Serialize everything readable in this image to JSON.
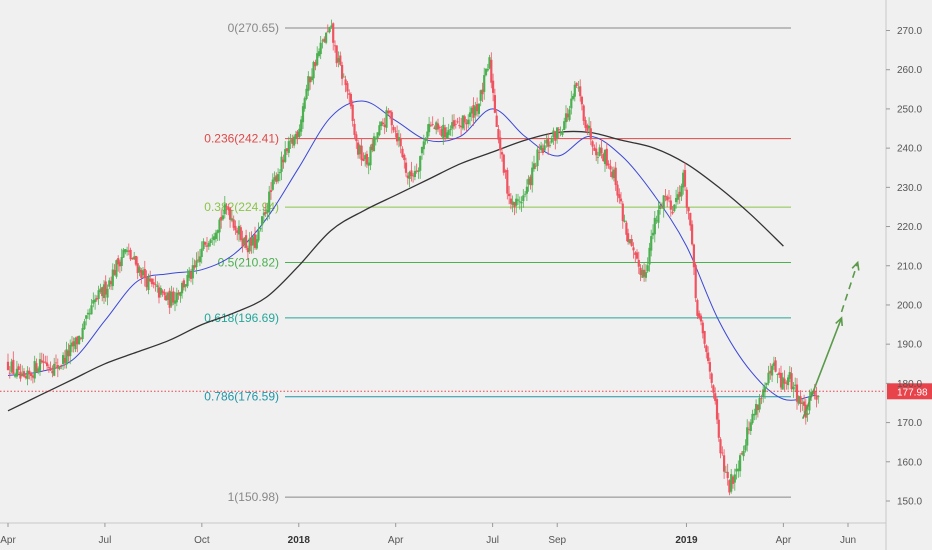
{
  "chart_data": {
    "type": "candlestick",
    "y_axis": {
      "min": 148,
      "max": 276,
      "ticks": [
        150,
        160,
        170,
        180,
        190,
        200,
        210,
        220,
        230,
        240,
        250,
        260,
        270
      ]
    },
    "x_axis": {
      "ticks": [
        {
          "label": "Apr",
          "bold": false,
          "month": 0
        },
        {
          "label": "Jul",
          "bold": false,
          "month": 3
        },
        {
          "label": "Oct",
          "bold": false,
          "month": 6
        },
        {
          "label": "2018",
          "bold": true,
          "month": 9
        },
        {
          "label": "Apr",
          "bold": false,
          "month": 12
        },
        {
          "label": "Jul",
          "bold": false,
          "month": 15
        },
        {
          "label": "Sep",
          "bold": false,
          "month": 17
        },
        {
          "label": "2019",
          "bold": true,
          "month": 21
        },
        {
          "label": "Apr",
          "bold": false,
          "month": 24
        },
        {
          "label": "Jun",
          "bold": false,
          "month": 26
        }
      ]
    },
    "last_price": {
      "value": 177.98,
      "label": "177.98",
      "color": "#e8424a"
    },
    "fib_levels": [
      {
        "ratio": "0",
        "price": 270.65,
        "label": "0(270.65)",
        "color": "#888888"
      },
      {
        "ratio": "0.236",
        "price": 242.41,
        "label": "0.236(242.41)",
        "color": "#e04848"
      },
      {
        "ratio": "0.382",
        "price": 224.94,
        "label": "0.382(224.94)",
        "color": "#8bc34a"
      },
      {
        "ratio": "0.5",
        "price": 210.82,
        "label": "0.5(210.82)",
        "color": "#4caf50"
      },
      {
        "ratio": "0.618",
        "price": 196.69,
        "label": "0.618(196.69)",
        "color": "#26a69a"
      },
      {
        "ratio": "0.786",
        "price": 176.59,
        "label": "0.786(176.59)",
        "color": "#2196a8"
      },
      {
        "ratio": "1",
        "price": 150.98,
        "label": "1(150.98)",
        "color": "#888888"
      }
    ],
    "price_path": [
      [
        0,
        185
      ],
      [
        0.5,
        180
      ],
      [
        1,
        186
      ],
      [
        1.5,
        184
      ],
      [
        2,
        189
      ],
      [
        2.3,
        193
      ],
      [
        2.7,
        201
      ],
      [
        3,
        204
      ],
      [
        3.3,
        209
      ],
      [
        3.6,
        214
      ],
      [
        4,
        210
      ],
      [
        4.4,
        205
      ],
      [
        4.7,
        203
      ],
      [
        5,
        201
      ],
      [
        5.4,
        205
      ],
      [
        5.8,
        209
      ],
      [
        6.1,
        216
      ],
      [
        6.5,
        221
      ],
      [
        6.8,
        225
      ],
      [
        7.1,
        219
      ],
      [
        7.4,
        215
      ],
      [
        7.7,
        216
      ],
      [
        8.0,
        225
      ],
      [
        8.3,
        233
      ],
      [
        8.7,
        240
      ],
      [
        9.0,
        245
      ],
      [
        9.2,
        254
      ],
      [
        9.5,
        262
      ],
      [
        9.8,
        268
      ],
      [
        10.0,
        270
      ],
      [
        10.2,
        262
      ],
      [
        10.5,
        255
      ],
      [
        10.8,
        240
      ],
      [
        11.1,
        236
      ],
      [
        11.4,
        243
      ],
      [
        11.8,
        249
      ],
      [
        12.1,
        242
      ],
      [
        12.4,
        232
      ],
      [
        12.7,
        236
      ],
      [
        13.0,
        246
      ],
      [
        13.4,
        244
      ],
      [
        13.8,
        245
      ],
      [
        14.2,
        247
      ],
      [
        14.6,
        252
      ],
      [
        14.9,
        262
      ],
      [
        15.1,
        248
      ],
      [
        15.3,
        236
      ],
      [
        15.6,
        225
      ],
      [
        16.0,
        228
      ],
      [
        16.4,
        238
      ],
      [
        16.8,
        242
      ],
      [
        17.1,
        245
      ],
      [
        17.4,
        250
      ],
      [
        17.6,
        256
      ],
      [
        17.9,
        246
      ],
      [
        18.2,
        240
      ],
      [
        18.5,
        238
      ],
      [
        18.8,
        232
      ],
      [
        19.1,
        220
      ],
      [
        19.4,
        211
      ],
      [
        19.7,
        208
      ],
      [
        20.0,
        220
      ],
      [
        20.3,
        228
      ],
      [
        20.6,
        225
      ],
      [
        20.9,
        232
      ],
      [
        21.1,
        222
      ],
      [
        21.3,
        200
      ],
      [
        21.6,
        188
      ],
      [
        21.8,
        181
      ],
      [
        22.0,
        165
      ],
      [
        22.3,
        153
      ],
      [
        22.6,
        160
      ],
      [
        22.9,
        168
      ],
      [
        23.2,
        175
      ],
      [
        23.5,
        180
      ],
      [
        23.7,
        184
      ],
      [
        23.9,
        180
      ],
      [
        24.2,
        181
      ],
      [
        24.5,
        176
      ],
      [
        24.7,
        172
      ],
      [
        24.9,
        177
      ],
      [
        25.1,
        178
      ]
    ],
    "ma_fast": [
      [
        0,
        182
      ],
      [
        1,
        183
      ],
      [
        2,
        186
      ],
      [
        3,
        196
      ],
      [
        4,
        206
      ],
      [
        5,
        208
      ],
      [
        6,
        209
      ],
      [
        7,
        213
      ],
      [
        8,
        222
      ],
      [
        9,
        235
      ],
      [
        10,
        248
      ],
      [
        11,
        252
      ],
      [
        12,
        247
      ],
      [
        13,
        242
      ],
      [
        14,
        243
      ],
      [
        15,
        250
      ],
      [
        16,
        243
      ],
      [
        17,
        238
      ],
      [
        18,
        243
      ],
      [
        19,
        238
      ],
      [
        20,
        228
      ],
      [
        21,
        215
      ],
      [
        22,
        196
      ],
      [
        23,
        183
      ],
      [
        24,
        176
      ],
      [
        25,
        177
      ]
    ],
    "ma_slow": [
      [
        0,
        173
      ],
      [
        1,
        177
      ],
      [
        2,
        181
      ],
      [
        3,
        185
      ],
      [
        4,
        188
      ],
      [
        5,
        191
      ],
      [
        6,
        195
      ],
      [
        7,
        198
      ],
      [
        8,
        202
      ],
      [
        9,
        210
      ],
      [
        10,
        219
      ],
      [
        11,
        224
      ],
      [
        12,
        228
      ],
      [
        13,
        232
      ],
      [
        14,
        236
      ],
      [
        15,
        239
      ],
      [
        16,
        242
      ],
      [
        17,
        244
      ],
      [
        18,
        244
      ],
      [
        19,
        242
      ],
      [
        20,
        240
      ],
      [
        21,
        236
      ],
      [
        22,
        230
      ],
      [
        23,
        223
      ],
      [
        24,
        215
      ]
    ],
    "projection_solid": [
      [
        24.6,
        171
      ],
      [
        25.8,
        196.69
      ]
    ],
    "projection_dashed": [
      [
        25.8,
        196.69
      ],
      [
        26.3,
        210.82
      ]
    ]
  }
}
